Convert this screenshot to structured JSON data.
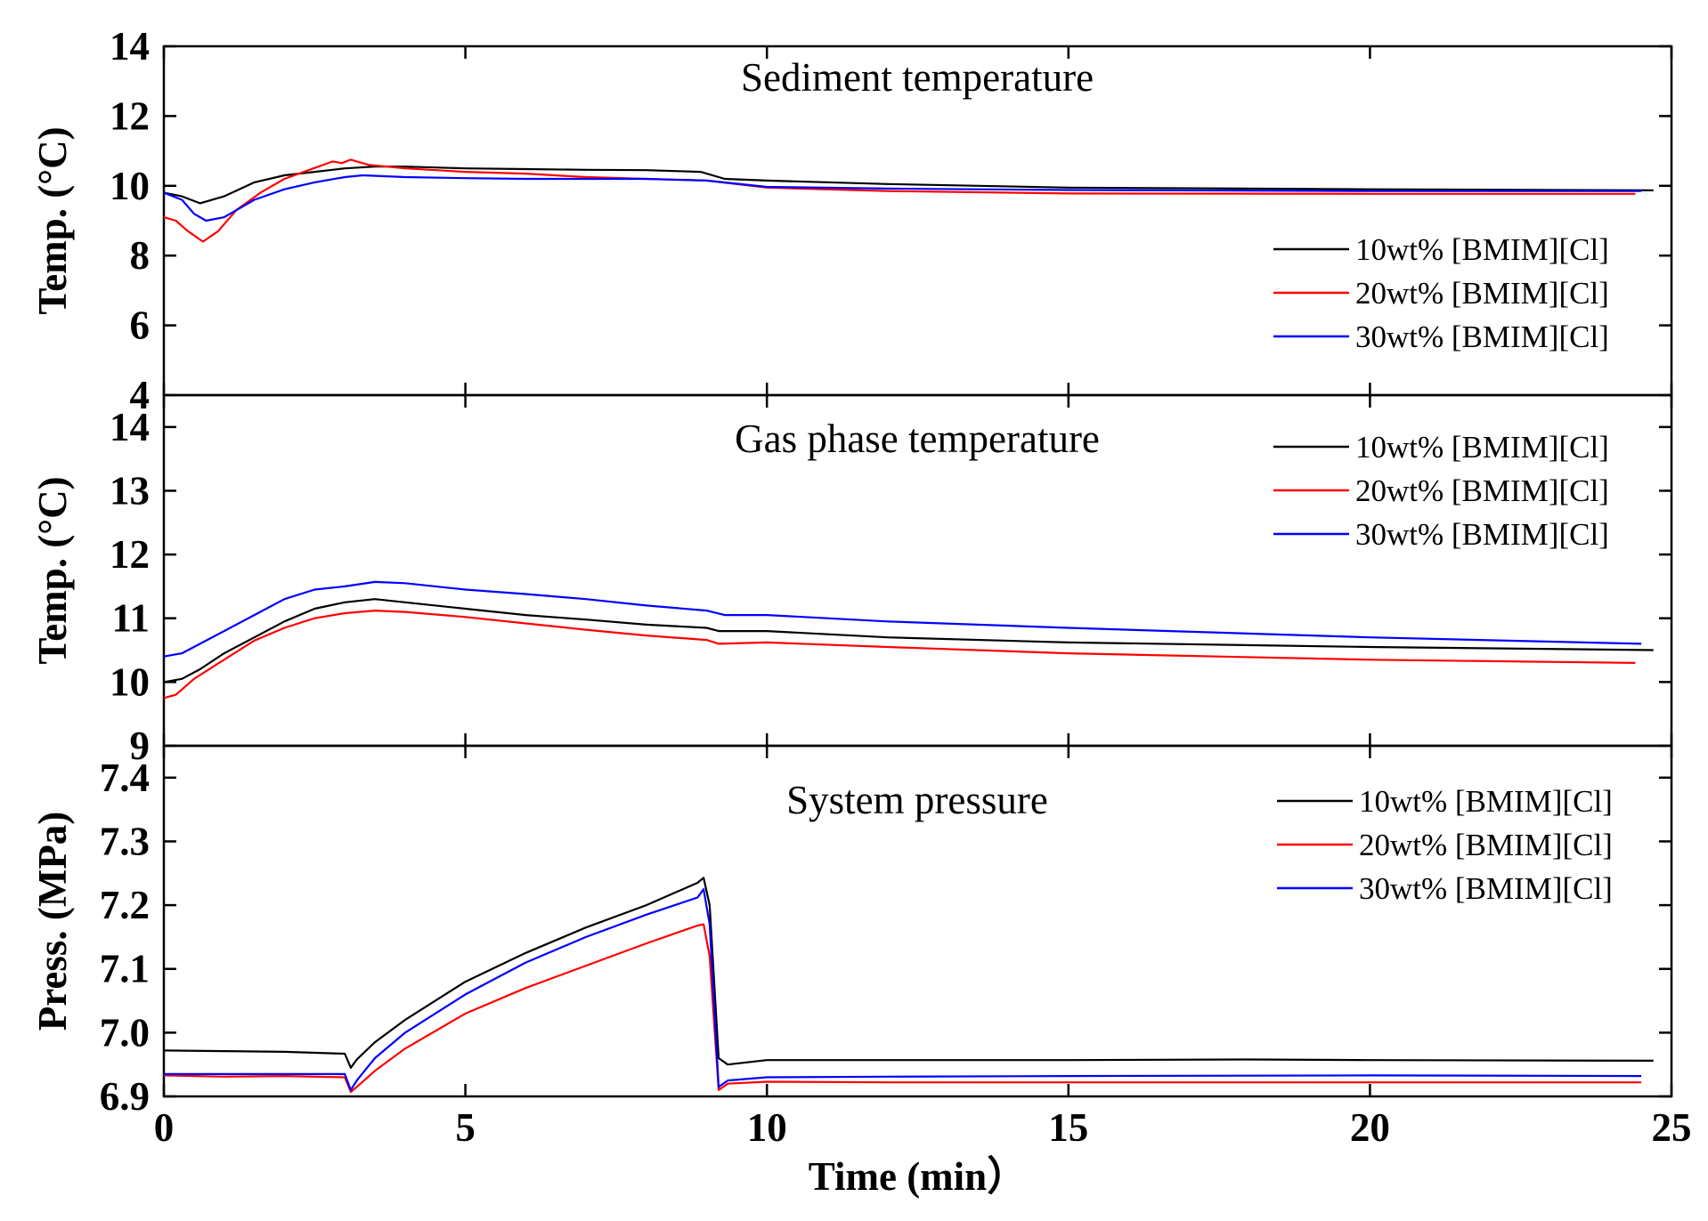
{
  "chart_data": [
    {
      "type": "line",
      "title": "Sediment temperature",
      "ylabel": "Temp. (°C)",
      "xlabel": "",
      "xlim": [
        0,
        25
      ],
      "ylim": [
        4,
        14
      ],
      "xticks": [
        0,
        5,
        10,
        15,
        20,
        25
      ],
      "yticks": [
        4,
        6,
        8,
        10,
        12,
        14
      ],
      "ytick_labels": [
        "4",
        "6",
        "8",
        "10",
        "12",
        "14"
      ],
      "legend_position": "bottom-right",
      "series": [
        {
          "name": "10wt% [BMIM][Cl]",
          "color": "#000000",
          "x": [
            0,
            0.3,
            0.6,
            1.0,
            1.5,
            2.0,
            2.5,
            3.0,
            3.5,
            4.0,
            5.0,
            6.0,
            7.0,
            8.0,
            8.9,
            9.3,
            10.0,
            12.0,
            15.0,
            20.0,
            24.7
          ],
          "y": [
            9.8,
            9.7,
            9.5,
            9.7,
            10.1,
            10.3,
            10.4,
            10.5,
            10.55,
            10.55,
            10.5,
            10.48,
            10.46,
            10.45,
            10.4,
            10.2,
            10.15,
            10.05,
            9.95,
            9.9,
            9.87
          ]
        },
        {
          "name": "20wt% [BMIM][Cl]",
          "color": "#ff0000",
          "x": [
            0,
            0.2,
            0.4,
            0.65,
            0.9,
            1.2,
            1.6,
            2.0,
            2.4,
            2.8,
            2.95,
            3.1,
            3.2,
            3.4,
            3.7,
            4.0,
            5.0,
            6.0,
            7.0,
            8.0,
            9.0,
            10.0,
            12.0,
            15.0,
            20.0,
            24.4
          ],
          "y": [
            9.1,
            9.0,
            8.7,
            8.4,
            8.7,
            9.3,
            9.8,
            10.2,
            10.45,
            10.7,
            10.65,
            10.75,
            10.7,
            10.6,
            10.55,
            10.5,
            10.4,
            10.35,
            10.25,
            10.2,
            10.15,
            9.95,
            9.85,
            9.78,
            9.77,
            9.77
          ]
        },
        {
          "name": "30wt% [BMIM][Cl]",
          "color": "#0000ff",
          "x": [
            0,
            0.3,
            0.5,
            0.7,
            1.0,
            1.5,
            2.0,
            2.5,
            3.0,
            3.3,
            4.0,
            5.0,
            6.0,
            7.0,
            8.0,
            9.0,
            10.0,
            12.0,
            15.0,
            20.0,
            24.5
          ],
          "y": [
            9.8,
            9.6,
            9.2,
            9.0,
            9.1,
            9.6,
            9.9,
            10.1,
            10.25,
            10.3,
            10.25,
            10.22,
            10.2,
            10.2,
            10.2,
            10.15,
            9.97,
            9.92,
            9.88,
            9.85,
            9.85
          ]
        }
      ]
    },
    {
      "type": "line",
      "title": "Gas phase temperature",
      "ylabel": "Temp. (°C)",
      "xlabel": "",
      "xlim": [
        0,
        25
      ],
      "ylim": [
        9,
        14.5
      ],
      "xticks": [
        0,
        5,
        10,
        15,
        20,
        25
      ],
      "yticks": [
        9,
        10,
        11,
        12,
        13,
        14
      ],
      "ytick_labels": [
        "9",
        "10",
        "11",
        "12",
        "13",
        "14"
      ],
      "legend_position": "top-right",
      "series": [
        {
          "name": "10wt% [BMIM][Cl]",
          "color": "#000000",
          "x": [
            0,
            0.3,
            0.6,
            1.0,
            1.5,
            2.0,
            2.5,
            3.0,
            3.5,
            4.0,
            5.0,
            6.0,
            7.0,
            8.0,
            9.0,
            9.2,
            10.0,
            12.0,
            15.0,
            20.0,
            24.7
          ],
          "y": [
            10.0,
            10.05,
            10.2,
            10.45,
            10.7,
            10.95,
            11.15,
            11.25,
            11.3,
            11.25,
            11.15,
            11.05,
            10.98,
            10.9,
            10.85,
            10.8,
            10.8,
            10.7,
            10.62,
            10.55,
            10.5
          ]
        },
        {
          "name": "20wt% [BMIM][Cl]",
          "color": "#ff0000",
          "x": [
            0,
            0.2,
            0.5,
            1.0,
            1.5,
            2.0,
            2.5,
            3.0,
            3.5,
            4.0,
            5.0,
            6.0,
            7.0,
            8.0,
            9.0,
            9.2,
            10.0,
            12.0,
            15.0,
            20.0,
            24.4
          ],
          "y": [
            9.75,
            9.8,
            10.05,
            10.35,
            10.65,
            10.85,
            11.0,
            11.08,
            11.12,
            11.1,
            11.02,
            10.92,
            10.82,
            10.73,
            10.66,
            10.6,
            10.62,
            10.55,
            10.45,
            10.35,
            10.3
          ]
        },
        {
          "name": "30wt% [BMIM][Cl]",
          "color": "#0000ff",
          "x": [
            0,
            0.3,
            0.6,
            1.0,
            1.5,
            2.0,
            2.5,
            3.0,
            3.5,
            4.0,
            5.0,
            6.0,
            7.0,
            8.0,
            9.0,
            9.3,
            10.0,
            12.0,
            15.0,
            20.0,
            24.5
          ],
          "y": [
            10.4,
            10.45,
            10.6,
            10.8,
            11.05,
            11.3,
            11.45,
            11.5,
            11.57,
            11.55,
            11.45,
            11.38,
            11.3,
            11.2,
            11.12,
            11.05,
            11.05,
            10.95,
            10.85,
            10.7,
            10.6
          ]
        }
      ]
    },
    {
      "type": "line",
      "title": "System pressure",
      "ylabel": "Press. (MPa)",
      "xlabel": "Time (min）",
      "xlim": [
        0,
        25
      ],
      "ylim": [
        6.9,
        7.45
      ],
      "xticks": [
        0,
        5,
        10,
        15,
        20,
        25
      ],
      "xtick_labels": [
        "0",
        "5",
        "10",
        "15",
        "20",
        "25"
      ],
      "yticks": [
        6.9,
        7.0,
        7.1,
        7.2,
        7.3,
        7.4
      ],
      "ytick_labels": [
        "6.9",
        "7.0",
        "7.1",
        "7.2",
        "7.3",
        "7.4"
      ],
      "legend_position": "top-right",
      "series": [
        {
          "name": "10wt% [BMIM][Cl]",
          "color": "#000000",
          "x": [
            0,
            1,
            2,
            3.0,
            3.1,
            3.2,
            3.5,
            4.0,
            5.0,
            6.0,
            7.0,
            8.0,
            8.85,
            8.95,
            9.05,
            9.2,
            9.35,
            10.0,
            12.0,
            15.0,
            18.0,
            20.0,
            24.7
          ],
          "y": [
            6.972,
            6.971,
            6.97,
            6.967,
            6.945,
            6.958,
            6.985,
            7.02,
            7.08,
            7.125,
            7.165,
            7.2,
            7.235,
            7.243,
            7.2,
            6.96,
            6.95,
            6.957,
            6.957,
            6.957,
            6.958,
            6.957,
            6.956
          ]
        },
        {
          "name": "20wt% [BMIM][Cl]",
          "color": "#ff0000",
          "x": [
            0,
            1,
            2,
            3.0,
            3.1,
            3.2,
            3.5,
            4.0,
            5.0,
            6.0,
            7.0,
            8.0,
            8.85,
            8.95,
            9.05,
            9.2,
            9.35,
            10.0,
            12.0,
            15.0,
            20.0,
            24.5
          ],
          "y": [
            6.933,
            6.931,
            6.932,
            6.93,
            6.907,
            6.915,
            6.94,
            6.975,
            7.03,
            7.07,
            7.105,
            7.14,
            7.168,
            7.17,
            7.12,
            6.91,
            6.92,
            6.923,
            6.922,
            6.922,
            6.922,
            6.922
          ]
        },
        {
          "name": "30wt% [BMIM][Cl]",
          "color": "#0000ff",
          "x": [
            0,
            1,
            2,
            3.0,
            3.1,
            3.2,
            3.5,
            4.0,
            5.0,
            6.0,
            7.0,
            8.0,
            8.85,
            8.95,
            9.05,
            9.2,
            9.35,
            10.0,
            12.0,
            15.0,
            20.0,
            24.5
          ],
          "y": [
            6.935,
            6.935,
            6.935,
            6.935,
            6.91,
            6.925,
            6.96,
            7.0,
            7.06,
            7.11,
            7.15,
            7.185,
            7.212,
            7.225,
            7.17,
            6.915,
            6.925,
            6.93,
            6.931,
            6.932,
            6.933,
            6.932
          ]
        }
      ]
    }
  ]
}
